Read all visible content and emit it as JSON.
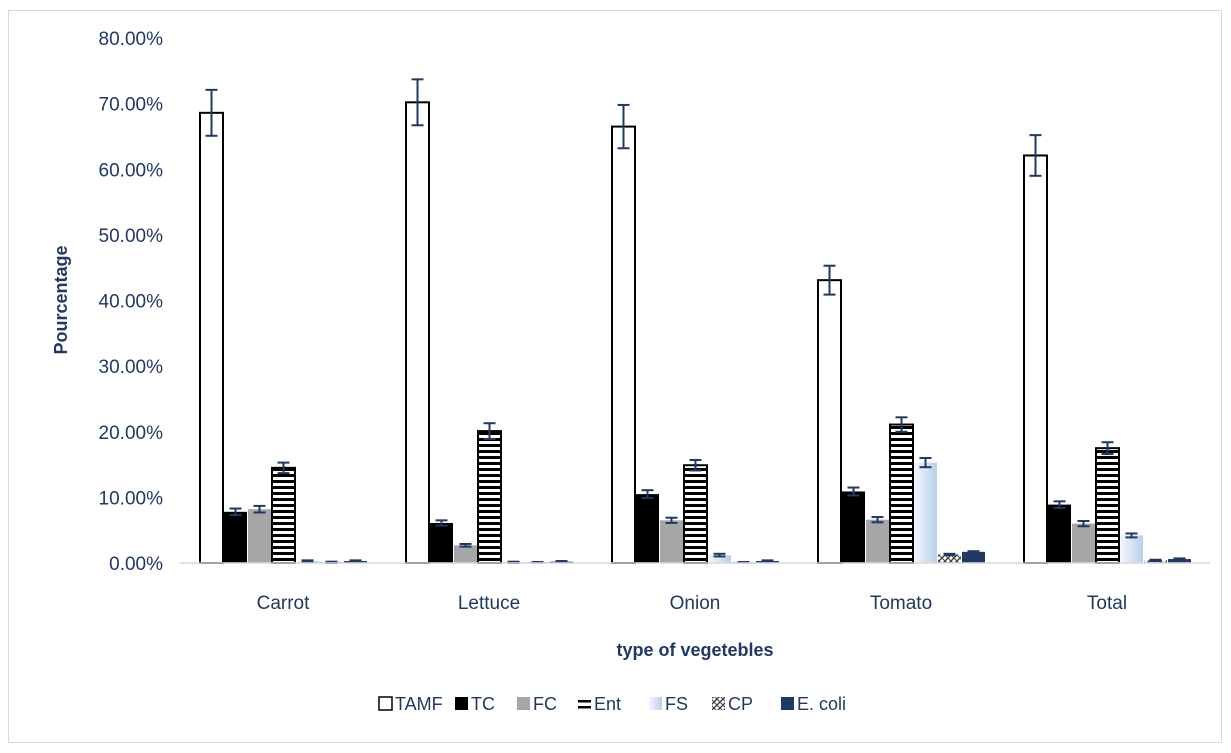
{
  "chart_data": {
    "type": "bar",
    "title": "",
    "xlabel": "type of vegetebles",
    "ylabel": "Pourcentage",
    "ylim": [
      0,
      0.8
    ],
    "yticks": [
      "0.00%",
      "10.00%",
      "20.00%",
      "30.00%",
      "40.00%",
      "50.00%",
      "60.00%",
      "70.00%",
      "80.00%"
    ],
    "grid": false,
    "legend_position": "bottom",
    "categories": [
      "Carrot",
      "Lettuce",
      "Onion",
      "Tomato",
      "Total"
    ],
    "series": [
      {
        "name": "TAMF",
        "pattern": "white",
        "values": [
          0.686,
          0.702,
          0.665,
          0.431,
          0.621
        ],
        "errors": [
          0.035,
          0.035,
          0.033,
          0.022,
          0.031
        ]
      },
      {
        "name": "TC",
        "pattern": "black",
        "values": [
          0.078,
          0.061,
          0.105,
          0.109,
          0.089
        ],
        "errors": [
          0.005,
          0.004,
          0.006,
          0.006,
          0.005
        ]
      },
      {
        "name": "FC",
        "pattern": "gray",
        "values": [
          0.082,
          0.027,
          0.065,
          0.066,
          0.06
        ],
        "errors": [
          0.005,
          0.002,
          0.004,
          0.004,
          0.004
        ]
      },
      {
        "name": "Ent",
        "pattern": "hstripes",
        "values": [
          0.145,
          0.201,
          0.149,
          0.211,
          0.175
        ],
        "errors": [
          0.008,
          0.012,
          0.008,
          0.011,
          0.009
        ]
      },
      {
        "name": "FS",
        "pattern": "lightblue",
        "values": [
          0.003,
          0.001,
          0.012,
          0.153,
          0.042
        ],
        "errors": [
          0.001,
          0.001,
          0.002,
          0.007,
          0.003
        ]
      },
      {
        "name": "CP",
        "pattern": "zigzag",
        "values": [
          0.001,
          0.001,
          0.001,
          0.013,
          0.004
        ],
        "errors": [
          0.001,
          0.0005,
          0.0005,
          0.001,
          0.001
        ]
      },
      {
        "name": "E. coli",
        "pattern": "navy",
        "values": [
          0.003,
          0.002,
          0.003,
          0.017,
          0.006
        ],
        "errors": [
          0.001,
          0.001,
          0.001,
          0.001,
          0.001
        ]
      }
    ],
    "colors": {
      "axis_text": "#1f3864",
      "error_bar": "#1f3864",
      "navy": "#1f3864",
      "gray": "#a6a6a6",
      "lightblue": "#c5d9f1"
    }
  }
}
